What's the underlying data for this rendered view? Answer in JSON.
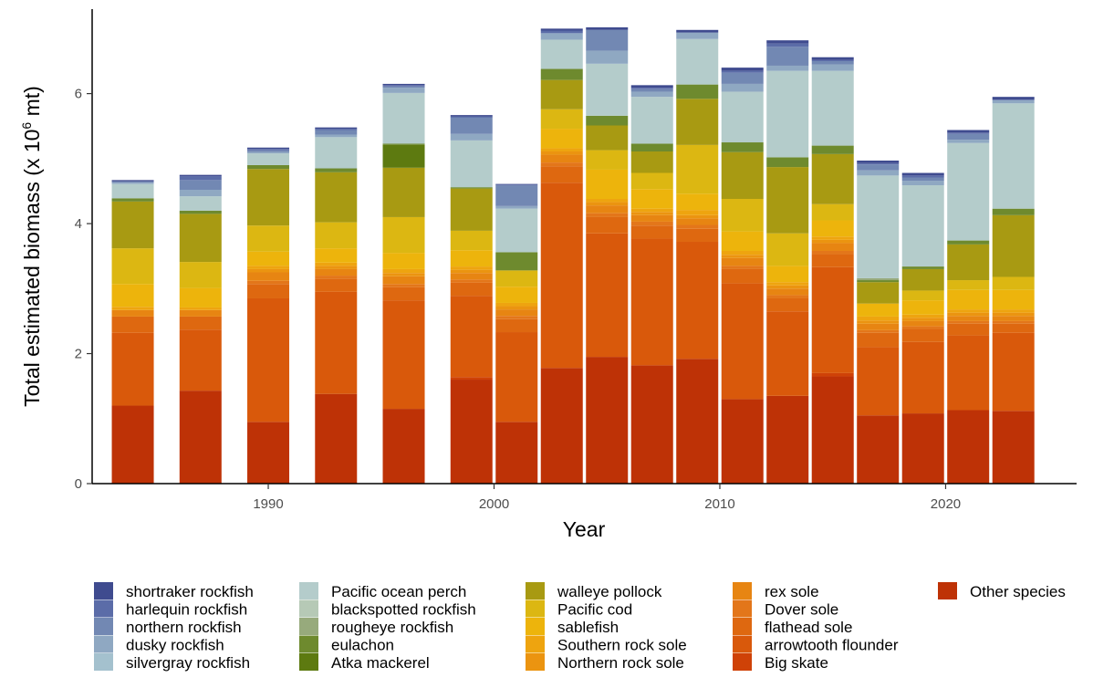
{
  "chart_data": {
    "type": "bar",
    "stacked": true,
    "xlabel": "Year",
    "ylabel": "Total estimated biomass (x 10",
    "ylabel_sup": "6",
    "ylabel_unit": " mt)",
    "x": [
      1984,
      1987,
      1990,
      1993,
      1996,
      1999,
      2001,
      2003,
      2005,
      2007,
      2009,
      2011,
      2013,
      2015,
      2017,
      2019,
      2021,
      2023
    ],
    "xlim": [
      1982.2,
      2025.8
    ],
    "xticks": [
      1990,
      2000,
      2010,
      2020
    ],
    "ylim": [
      0,
      7.3
    ],
    "yticks": [
      0,
      2,
      4,
      6
    ],
    "grid": false,
    "legend_position": "bottom",
    "series": [
      {
        "name": "Other species",
        "color": "#be3206",
        "values": [
          1.2,
          1.43,
          0.95,
          1.38,
          1.15,
          1.6,
          0.95,
          1.78,
          1.95,
          1.82,
          1.92,
          1.3,
          1.35,
          1.65,
          1.05,
          1.08,
          1.13,
          1.12
        ]
      },
      {
        "name": "Big skate",
        "color": "#cf4207",
        "values": [
          0.0,
          0.0,
          0.0,
          0.0,
          0.0,
          0.04,
          0.0,
          0.0,
          0.0,
          0.0,
          0.0,
          0.0,
          0.0,
          0.05,
          0.0,
          0.0,
          0.0,
          0.0
        ]
      },
      {
        "name": "arrowtooth flounder",
        "color": "#d9590b",
        "values": [
          1.12,
          0.94,
          1.9,
          1.57,
          1.67,
          1.25,
          1.38,
          2.85,
          1.9,
          1.95,
          1.8,
          1.78,
          1.3,
          1.63,
          1.05,
          1.1,
          1.15,
          1.2
        ]
      },
      {
        "name": "flathead sole",
        "color": "#de6810",
        "values": [
          0.25,
          0.2,
          0.22,
          0.2,
          0.2,
          0.2,
          0.2,
          0.25,
          0.25,
          0.2,
          0.2,
          0.22,
          0.2,
          0.2,
          0.22,
          0.2,
          0.18,
          0.14
        ]
      },
      {
        "name": "Dover sole",
        "color": "#e3761a",
        "values": [
          0.0,
          0.0,
          0.05,
          0.05,
          0.05,
          0.05,
          0.05,
          0.06,
          0.06,
          0.06,
          0.06,
          0.05,
          0.05,
          0.05,
          0.04,
          0.04,
          0.04,
          0.04
        ]
      },
      {
        "name": "rex sole",
        "color": "#e78512",
        "values": [
          0.1,
          0.1,
          0.13,
          0.1,
          0.12,
          0.1,
          0.1,
          0.12,
          0.12,
          0.1,
          0.1,
          0.12,
          0.1,
          0.12,
          0.1,
          0.08,
          0.08,
          0.08
        ]
      },
      {
        "name": "Northern rock sole",
        "color": "#eb9410",
        "values": [
          0.0,
          0.0,
          0.05,
          0.05,
          0.05,
          0.05,
          0.05,
          0.05,
          0.05,
          0.05,
          0.05,
          0.05,
          0.05,
          0.05,
          0.05,
          0.05,
          0.05,
          0.05
        ]
      },
      {
        "name": "Southern rock sole",
        "color": "#eea40f",
        "values": [
          0.05,
          0.04,
          0.05,
          0.05,
          0.06,
          0.05,
          0.05,
          0.05,
          0.05,
          0.05,
          0.08,
          0.06,
          0.05,
          0.05,
          0.06,
          0.05,
          0.05,
          0.05
        ]
      },
      {
        "name": "sablefish",
        "color": "#edb40c",
        "values": [
          0.35,
          0.3,
          0.22,
          0.22,
          0.25,
          0.25,
          0.25,
          0.3,
          0.45,
          0.3,
          0.25,
          0.3,
          0.25,
          0.25,
          0.2,
          0.22,
          0.3,
          0.3
        ]
      },
      {
        "name": "Pacific cod",
        "color": "#dcb712",
        "values": [
          0.55,
          0.4,
          0.4,
          0.4,
          0.55,
          0.3,
          0.25,
          0.3,
          0.3,
          0.25,
          0.75,
          0.5,
          0.5,
          0.25,
          0.0,
          0.15,
          0.15,
          0.2
        ]
      },
      {
        "name": "walleye pollock",
        "color": "#a89a12",
        "values": [
          0.72,
          0.74,
          0.87,
          0.77,
          0.76,
          0.65,
          0.0,
          0.45,
          0.38,
          0.33,
          0.71,
          0.72,
          1.02,
          0.77,
          0.33,
          0.33,
          0.55,
          0.95
        ]
      },
      {
        "name": "Atka mackerel",
        "color": "#5d7a10",
        "values": [
          0.0,
          0.0,
          0.0,
          0.0,
          0.35,
          0.0,
          0.0,
          0.0,
          0.0,
          0.0,
          0.0,
          0.0,
          0.0,
          0.0,
          0.0,
          0.0,
          0.0,
          0.0
        ]
      },
      {
        "name": "eulachon",
        "color": "#6e8a2e",
        "values": [
          0.05,
          0.05,
          0.06,
          0.06,
          0.02,
          0.02,
          0.28,
          0.17,
          0.15,
          0.12,
          0.22,
          0.15,
          0.15,
          0.13,
          0.03,
          0.04,
          0.06,
          0.1
        ]
      },
      {
        "name": "rougheye rockfish",
        "color": "#97aa7c",
        "values": [
          0.0,
          0.0,
          0.0,
          0.0,
          0.0,
          0.0,
          0.0,
          0.0,
          0.0,
          0.0,
          0.0,
          0.0,
          0.0,
          0.0,
          0.03,
          0.0,
          0.0,
          0.0
        ]
      },
      {
        "name": "blackspotted rockfish",
        "color": "#b6c9b6",
        "values": [
          0.0,
          0.0,
          0.0,
          0.0,
          0.0,
          0.0,
          0.0,
          0.0,
          0.0,
          0.0,
          0.0,
          0.0,
          0.0,
          0.0,
          0.0,
          0.0,
          0.0,
          0.0
        ]
      },
      {
        "name": "Pacific ocean perch",
        "color": "#b4cccb",
        "values": [
          0.22,
          0.22,
          0.18,
          0.48,
          0.78,
          0.72,
          0.67,
          0.45,
          0.8,
          0.72,
          0.7,
          0.78,
          1.33,
          1.15,
          1.58,
          1.25,
          1.5,
          1.62
        ]
      },
      {
        "name": "silvergray rockfish",
        "color": "#a4c1ce",
        "values": [
          0.0,
          0.0,
          0.0,
          0.0,
          0.0,
          0.0,
          0.0,
          0.0,
          0.0,
          0.0,
          0.0,
          0.0,
          0.0,
          0.0,
          0.0,
          0.0,
          0.0,
          0.0
        ]
      },
      {
        "name": "dusky rockfish",
        "color": "#8fa8c2",
        "values": [
          0.02,
          0.1,
          0.02,
          0.04,
          0.08,
          0.1,
          0.04,
          0.1,
          0.2,
          0.08,
          0.1,
          0.12,
          0.08,
          0.1,
          0.08,
          0.07,
          0.05,
          0.05
        ]
      },
      {
        "name": "northern rockfish",
        "color": "#7288b3",
        "values": [
          0.02,
          0.15,
          0.03,
          0.07,
          0.02,
          0.25,
          0.32,
          0.0,
          0.32,
          0.04,
          0.0,
          0.17,
          0.29,
          0.05,
          0.09,
          0.05,
          0.09,
          0.0
        ]
      },
      {
        "name": "harlequin rockfish",
        "color": "#5b6ca8",
        "values": [
          0.0,
          0.06,
          0.02,
          0.02,
          0.02,
          0.02,
          0.01,
          0.04,
          0.0,
          0.02,
          0.0,
          0.03,
          0.05,
          0.02,
          0.02,
          0.03,
          0.02,
          0.01
        ]
      },
      {
        "name": "shortraker rockfish",
        "color": "#3f4b8f",
        "values": [
          0.02,
          0.02,
          0.02,
          0.02,
          0.02,
          0.02,
          0.01,
          0.03,
          0.04,
          0.04,
          0.04,
          0.05,
          0.05,
          0.04,
          0.04,
          0.04,
          0.04,
          0.04
        ]
      }
    ],
    "legend_columns": [
      [
        "shortraker rockfish",
        "harlequin rockfish",
        "northern rockfish",
        "dusky rockfish",
        "silvergray rockfish"
      ],
      [
        "Pacific ocean perch",
        "blackspotted rockfish",
        "rougheye rockfish",
        "eulachon",
        "Atka mackerel"
      ],
      [
        "walleye pollock",
        "Pacific cod",
        "sablefish",
        "Southern rock sole",
        "Northern rock sole"
      ],
      [
        "rex sole",
        "Dover sole",
        "flathead sole",
        "arrowtooth flounder",
        "Big skate"
      ],
      [
        "Other species"
      ]
    ]
  }
}
